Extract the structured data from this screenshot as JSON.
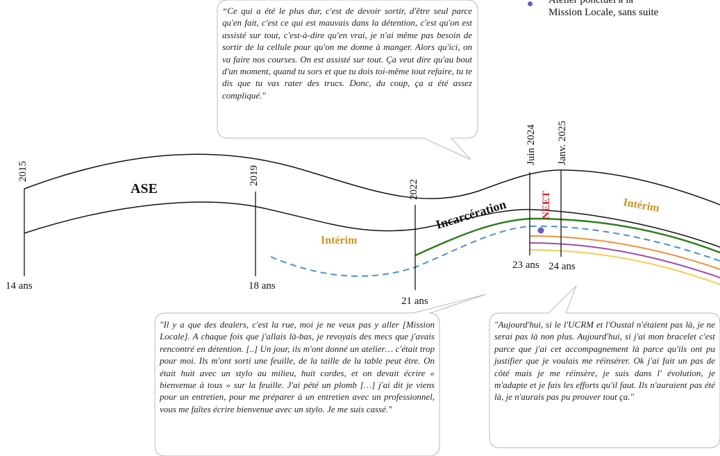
{
  "legend": {
    "dot_line1": "Atelier ponctuel à la",
    "dot_line2": "Mission Locale, sans suite",
    "dot_color": "#6b5bb3"
  },
  "timeline": {
    "year_labels": [
      "2015",
      "2019",
      "2022",
      "Juin 2024",
      "Janv. 2025"
    ],
    "age_labels": [
      "14 ans",
      "18 ans",
      "21 ans",
      "23 ans",
      "24 ans"
    ],
    "band_labels": {
      "ase": "ASE",
      "incarceration": "Incarcération",
      "neet": "NEET",
      "interim_right": "Intérim",
      "interim_lower": "Intérim"
    },
    "colors": {
      "interim": "#c8961e",
      "neet": "#d0202a",
      "green": "#2e7d1f",
      "orange": "#e8923a",
      "purple": "#9a4ea6",
      "yellow": "#f2cd55",
      "dashed_blue": "#4a8fd0"
    }
  },
  "quotes": {
    "top": "“Ce qui a été le plus dur, c'est de devoir sortir, d'être seul parce qu'en fait, c'est ce qui est mauvais dans la détention, c'est qu'on est assisté sur tout, c'est-à-dire qu'en vrai, je n'ai même pas besoin de sortir de la cellule pour qu'on me donne à manger. Alors qu'ici, on va faire nos courses. On est assisté sur tout. Ça veut dire qu'au bout d'un moment, quand tu sors et que tu dois toi-même tout refaire, tu te dis que tu vas rater des trucs. Donc, du coup, ça a été assez compliqué.\"",
    "bottom_left": "\"Il y a que des dealers, c'est la rue, moi je ne veux pas y aller [Mission Locale]. A chaque fois que j'allais là-bas, je revoyais des mecs que j'avais rencontré en détention. [..] Un jour, ils m'ont donné un atelier… c'était trop pour moi. Ils m'ont sorti une feuille, de la taille de la table peut être. On était huit avec un stylo au milieu, huit cordes, et on devait écrire « bienvenue à tous » sur la feuille. J'ai pété un plomb […] j'ai dit je viens pour un entretien, pour me préparer à un entretien avec un professionnel, vous me faîtes écrire bienvenue avec un stylo. Je me suis cassé.\"",
    "bottom_right": "\"Aujourd'hui, si le l'UCRM et l'Oustal n'étaient pas là, je ne serai pas là non plus. Aujourd'hui, si j'ai mon bracelet c'est parce que j'ai cet accompagnement là parce qu'ils ont pu justifier que je voulais me réinsérer. Ok j'ai fait un pas de côté mais je me réinsère, je suis dans l' évolution, je m'adapte et je fais les efforts qu'il faut. Ils n'auraient pas été là, je n'aurais pas pu prouver tout ça.\""
  }
}
